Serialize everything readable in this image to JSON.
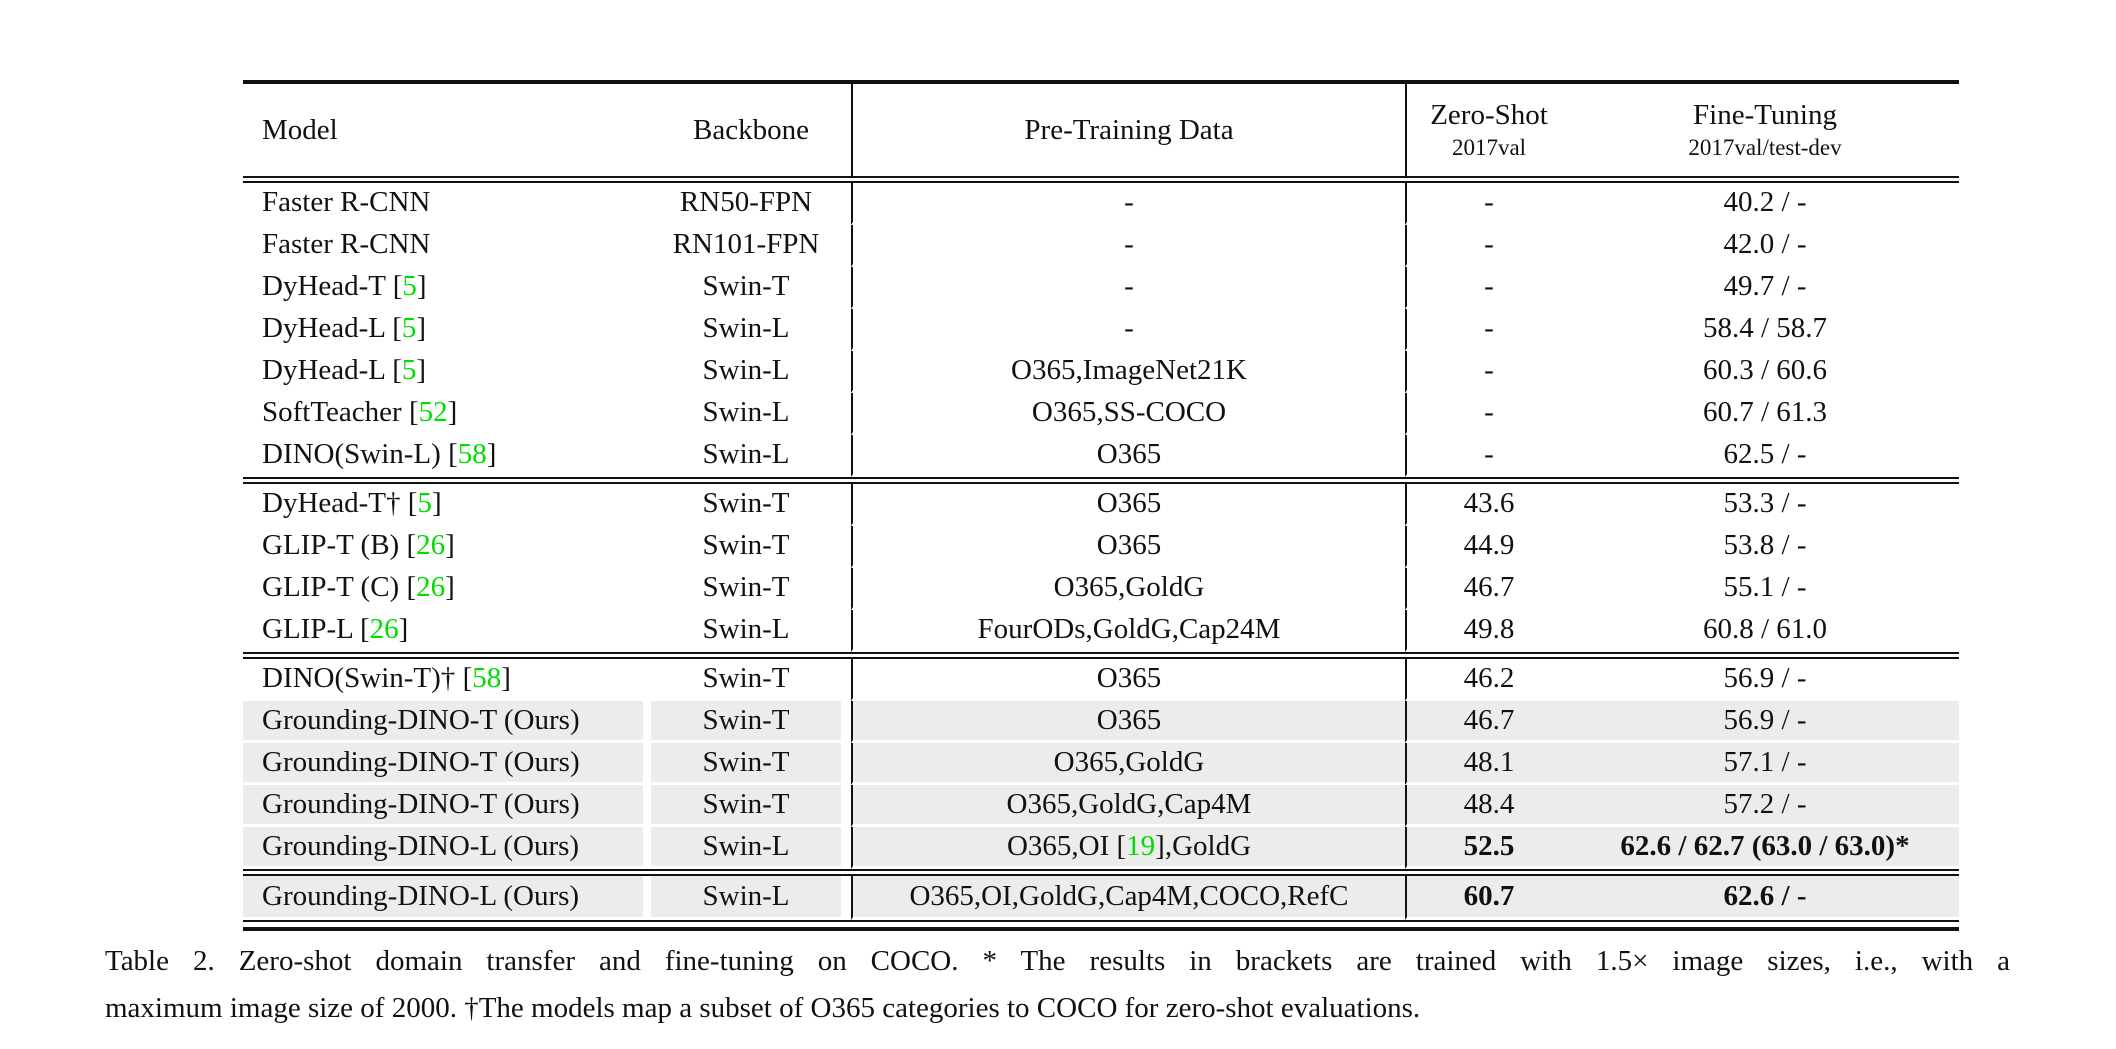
{
  "colors": {
    "citation_green": "#00dd00",
    "row_highlight": "#ececec",
    "rule_black": "#111111"
  },
  "table": {
    "columns": [
      {
        "label": "Model",
        "sub": ""
      },
      {
        "label": "Backbone",
        "sub": ""
      },
      {
        "label": "Pre-Training Data",
        "sub": ""
      },
      {
        "label": "Zero-Shot",
        "sub": "2017val"
      },
      {
        "label": "Fine-Tuning",
        "sub": "2017val/test-dev"
      }
    ],
    "sections": [
      {
        "rows": [
          {
            "model": "Faster R-CNN",
            "backbone": "RN50-FPN",
            "pretrain": "-",
            "zeroshot": "-",
            "finetune": "40.2 / -",
            "highlight": false,
            "bold": false
          },
          {
            "model": "Faster R-CNN",
            "backbone": "RN101-FPN",
            "pretrain": "-",
            "zeroshot": "-",
            "finetune": "42.0 / -",
            "highlight": false,
            "bold": false
          },
          {
            "model": "DyHead-T [5]",
            "backbone": "Swin-T",
            "pretrain": "-",
            "zeroshot": "-",
            "finetune": "49.7 / -",
            "highlight": false,
            "bold": false
          },
          {
            "model": "DyHead-L [5]",
            "backbone": "Swin-L",
            "pretrain": "-",
            "zeroshot": "-",
            "finetune": "58.4 / 58.7",
            "highlight": false,
            "bold": false
          },
          {
            "model": "DyHead-L [5]",
            "backbone": "Swin-L",
            "pretrain": "O365,ImageNet21K",
            "zeroshot": "-",
            "finetune": "60.3 / 60.6",
            "highlight": false,
            "bold": false
          },
          {
            "model": "SoftTeacher [52]",
            "backbone": "Swin-L",
            "pretrain": "O365,SS-COCO",
            "zeroshot": "-",
            "finetune": "60.7 / 61.3",
            "highlight": false,
            "bold": false
          },
          {
            "model": "DINO(Swin-L) [58]",
            "backbone": "Swin-L",
            "pretrain": "O365",
            "zeroshot": "-",
            "finetune": "62.5 / -",
            "highlight": false,
            "bold": false
          }
        ]
      },
      {
        "rows": [
          {
            "model": "DyHead-T† [5]",
            "backbone": "Swin-T",
            "pretrain": "O365",
            "zeroshot": "43.6",
            "finetune": "53.3 / -",
            "highlight": false,
            "bold": false
          },
          {
            "model": "GLIP-T (B) [26]",
            "backbone": "Swin-T",
            "pretrain": "O365",
            "zeroshot": "44.9",
            "finetune": "53.8 / -",
            "highlight": false,
            "bold": false
          },
          {
            "model": "GLIP-T (C) [26]",
            "backbone": "Swin-T",
            "pretrain": "O365,GoldG",
            "zeroshot": "46.7",
            "finetune": "55.1 / -",
            "highlight": false,
            "bold": false
          },
          {
            "model": "GLIP-L [26]",
            "backbone": "Swin-L",
            "pretrain": "FourODs,GoldG,Cap24M",
            "zeroshot": "49.8",
            "finetune": "60.8 / 61.0",
            "highlight": false,
            "bold": false
          }
        ]
      },
      {
        "rows": [
          {
            "model": "DINO(Swin-T)† [58]",
            "backbone": "Swin-T",
            "pretrain": "O365",
            "zeroshot": "46.2",
            "finetune": "56.9 / -",
            "highlight": false,
            "bold": false
          },
          {
            "model": "Grounding-DINO-T (Ours)",
            "backbone": "Swin-T",
            "pretrain": "O365",
            "zeroshot": "46.7",
            "finetune": "56.9 / -",
            "highlight": true,
            "bold": false
          },
          {
            "model": "Grounding-DINO-T (Ours)",
            "backbone": "Swin-T",
            "pretrain": "O365,GoldG",
            "zeroshot": "48.1",
            "finetune": "57.1 / -",
            "highlight": true,
            "bold": false
          },
          {
            "model": "Grounding-DINO-T (Ours)",
            "backbone": "Swin-T",
            "pretrain": "O365,GoldG,Cap4M",
            "zeroshot": "48.4",
            "finetune": "57.2 / -",
            "highlight": true,
            "bold": false
          },
          {
            "model": "Grounding-DINO-L (Ours)",
            "backbone": "Swin-L",
            "pretrain": "O365,OI [19],GoldG",
            "zeroshot": "52.5",
            "finetune": "62.6 / 62.7 (63.0 / 63.0)*",
            "highlight": true,
            "bold": true
          }
        ]
      },
      {
        "rows": [
          {
            "model": "Grounding-DINO-L (Ours)",
            "backbone": "Swin-L",
            "pretrain": "O365,OI,GoldG,Cap4M,COCO,RefC",
            "zeroshot": "60.7",
            "finetune": "62.6 / -",
            "highlight": true,
            "bold": true
          }
        ]
      }
    ]
  },
  "caption": {
    "line1": "Table 2.  Zero-shot domain transfer and fine-tuning on COCO. * The results in brackets are trained with 1.5× image sizes, i.e., with a",
    "line2": "maximum image size of 2000. †The models map a subset of O365 categories to COCO for zero-shot evaluations."
  }
}
